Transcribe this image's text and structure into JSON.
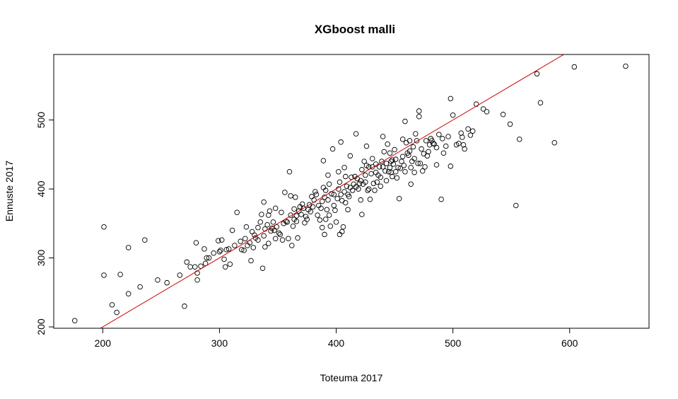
{
  "chart_data": {
    "type": "scatter",
    "title": "XGboost malli",
    "xlabel": "Toteuma 2017",
    "ylabel": "Ennuste 2017",
    "xlim": [
      158,
      668
    ],
    "ylim": [
      198,
      595
    ],
    "xticks": [
      200,
      300,
      400,
      500,
      600
    ],
    "yticks": [
      200,
      300,
      400,
      500
    ],
    "grid": false,
    "colors": {
      "points": "#000000",
      "fit_line": "#cc0000"
    },
    "reference_line": {
      "type": "identity",
      "intercept": 0,
      "slope": 1
    },
    "points": [
      [
        176,
        209
      ],
      [
        201,
        345
      ],
      [
        201,
        275
      ],
      [
        208,
        232
      ],
      [
        212,
        221
      ],
      [
        215,
        276
      ],
      [
        222,
        315
      ],
      [
        222,
        248
      ],
      [
        232,
        258
      ],
      [
        236,
        326
      ],
      [
        247,
        268
      ],
      [
        255,
        264
      ],
      [
        266,
        275
      ],
      [
        270,
        230
      ],
      [
        272,
        294
      ],
      [
        275,
        287
      ],
      [
        279,
        287
      ],
      [
        280,
        322
      ],
      [
        281,
        268
      ],
      [
        281,
        278
      ],
      [
        284,
        288
      ],
      [
        287,
        313
      ],
      [
        288,
        292
      ],
      [
        289,
        300
      ],
      [
        291,
        300
      ],
      [
        295,
        307
      ],
      [
        299,
        325
      ],
      [
        300,
        309
      ],
      [
        301,
        311
      ],
      [
        302,
        326
      ],
      [
        304,
        298
      ],
      [
        305,
        287
      ],
      [
        306,
        312
      ],
      [
        308,
        313
      ],
      [
        309,
        291
      ],
      [
        311,
        340
      ],
      [
        313,
        318
      ],
      [
        315,
        366
      ],
      [
        318,
        324
      ],
      [
        319,
        312
      ],
      [
        321,
        311
      ],
      [
        322,
        328
      ],
      [
        323,
        345
      ],
      [
        324,
        318
      ],
      [
        326,
        322
      ],
      [
        327,
        296
      ],
      [
        328,
        338
      ],
      [
        329,
        315
      ],
      [
        330,
        333
      ],
      [
        331,
        329
      ],
      [
        333,
        344
      ],
      [
        333,
        326
      ],
      [
        335,
        352
      ],
      [
        336,
        363
      ],
      [
        337,
        285
      ],
      [
        338,
        332
      ],
      [
        338,
        381
      ],
      [
        339,
        342
      ],
      [
        339,
        316
      ],
      [
        341,
        348
      ],
      [
        342,
        321
      ],
      [
        342,
        362
      ],
      [
        343,
        368
      ],
      [
        344,
        339
      ],
      [
        345,
        343
      ],
      [
        346,
        352
      ],
      [
        347,
        340
      ],
      [
        348,
        328
      ],
      [
        348,
        372
      ],
      [
        349,
        345
      ],
      [
        351,
        336
      ],
      [
        352,
        334
      ],
      [
        353,
        366
      ],
      [
        354,
        326
      ],
      [
        355,
        350
      ],
      [
        356,
        395
      ],
      [
        357,
        353
      ],
      [
        358,
        352
      ],
      [
        359,
        328
      ],
      [
        360,
        425
      ],
      [
        361,
        390
      ],
      [
        361,
        362
      ],
      [
        362,
        318
      ],
      [
        363,
        346
      ],
      [
        364,
        356
      ],
      [
        364,
        371
      ],
      [
        365,
        388
      ],
      [
        366,
        353
      ],
      [
        366,
        361
      ],
      [
        367,
        329
      ],
      [
        368,
        368
      ],
      [
        369,
        374
      ],
      [
        370,
        363
      ],
      [
        371,
        378
      ],
      [
        372,
        372
      ],
      [
        373,
        351
      ],
      [
        374,
        360
      ],
      [
        375,
        356
      ],
      [
        376,
        370
      ],
      [
        377,
        377
      ],
      [
        378,
        367
      ],
      [
        379,
        389
      ],
      [
        380,
        374
      ],
      [
        381,
        384
      ],
      [
        382,
        396
      ],
      [
        383,
        392
      ],
      [
        384,
        362
      ],
      [
        385,
        376
      ],
      [
        386,
        355
      ],
      [
        387,
        372
      ],
      [
        388,
        382
      ],
      [
        388,
        344
      ],
      [
        389,
        441
      ],
      [
        389,
        402
      ],
      [
        390,
        388
      ],
      [
        390,
        334
      ],
      [
        391,
        398
      ],
      [
        391,
        356
      ],
      [
        392,
        370
      ],
      [
        393,
        384
      ],
      [
        393,
        420
      ],
      [
        394,
        407
      ],
      [
        394,
        362
      ],
      [
        395,
        346
      ],
      [
        396,
        393
      ],
      [
        397,
        458
      ],
      [
        398,
        392
      ],
      [
        398,
        376
      ],
      [
        399,
        369
      ],
      [
        400,
        352
      ],
      [
        401,
        386
      ],
      [
        402,
        400
      ],
      [
        402,
        425
      ],
      [
        403,
        410
      ],
      [
        403,
        334
      ],
      [
        404,
        392
      ],
      [
        404,
        468
      ],
      [
        405,
        383
      ],
      [
        405,
        338
      ],
      [
        406,
        345
      ],
      [
        407,
        431
      ],
      [
        407,
        396
      ],
      [
        408,
        418
      ],
      [
        408,
        380
      ],
      [
        409,
        404
      ],
      [
        410,
        392
      ],
      [
        410,
        370
      ],
      [
        411,
        389
      ],
      [
        412,
        402
      ],
      [
        412,
        448
      ],
      [
        413,
        417
      ],
      [
        414,
        398
      ],
      [
        415,
        407
      ],
      [
        416,
        418
      ],
      [
        417,
        403
      ],
      [
        417,
        480
      ],
      [
        418,
        415
      ],
      [
        419,
        400
      ],
      [
        420,
        408
      ],
      [
        421,
        412
      ],
      [
        421,
        384
      ],
      [
        422,
        428
      ],
      [
        422,
        363
      ],
      [
        423,
        407
      ],
      [
        424,
        440
      ],
      [
        425,
        410
      ],
      [
        425,
        420
      ],
      [
        426,
        434
      ],
      [
        426,
        462
      ],
      [
        427,
        398
      ],
      [
        428,
        400
      ],
      [
        428,
        432
      ],
      [
        429,
        385
      ],
      [
        430,
        422
      ],
      [
        431,
        432
      ],
      [
        431,
        444
      ],
      [
        432,
        408
      ],
      [
        433,
        398
      ],
      [
        434,
        436
      ],
      [
        434,
        424
      ],
      [
        435,
        410
      ],
      [
        436,
        420
      ],
      [
        437,
        432
      ],
      [
        438,
        404
      ],
      [
        438,
        417
      ],
      [
        439,
        440
      ],
      [
        440,
        432
      ],
      [
        440,
        476
      ],
      [
        441,
        454
      ],
      [
        442,
        426
      ],
      [
        443,
        437
      ],
      [
        443,
        412
      ],
      [
        444,
        465
      ],
      [
        445,
        425
      ],
      [
        446,
        431
      ],
      [
        446,
        452
      ],
      [
        447,
        440
      ],
      [
        447,
        424
      ],
      [
        448,
        418
      ],
      [
        448,
        442
      ],
      [
        449,
        436
      ],
      [
        450,
        457
      ],
      [
        451,
        443
      ],
      [
        451,
        425
      ],
      [
        452,
        416
      ],
      [
        453,
        431
      ],
      [
        454,
        386
      ],
      [
        455,
        430
      ],
      [
        456,
        440
      ],
      [
        457,
        447
      ],
      [
        457,
        472
      ],
      [
        458,
        434
      ],
      [
        459,
        425
      ],
      [
        459,
        498
      ],
      [
        460,
        467
      ],
      [
        461,
        452
      ],
      [
        462,
        449
      ],
      [
        463,
        455
      ],
      [
        463,
        470
      ],
      [
        464,
        431
      ],
      [
        464,
        407
      ],
      [
        465,
        440
      ],
      [
        466,
        461
      ],
      [
        467,
        444
      ],
      [
        467,
        424
      ],
      [
        468,
        480
      ],
      [
        469,
        470
      ],
      [
        470,
        437
      ],
      [
        471,
        505
      ],
      [
        471,
        513
      ],
      [
        472,
        437
      ],
      [
        473,
        458
      ],
      [
        474,
        426
      ],
      [
        475,
        451
      ],
      [
        476,
        432
      ],
      [
        477,
        470
      ],
      [
        478,
        448
      ],
      [
        479,
        454
      ],
      [
        480,
        464
      ],
      [
        481,
        473
      ],
      [
        482,
        470
      ],
      [
        483,
        466
      ],
      [
        484,
        465
      ],
      [
        486,
        460
      ],
      [
        486,
        435
      ],
      [
        488,
        479
      ],
      [
        490,
        385
      ],
      [
        491,
        473
      ],
      [
        492,
        452
      ],
      [
        494,
        462
      ],
      [
        496,
        476
      ],
      [
        498,
        531
      ],
      [
        498,
        433
      ],
      [
        500,
        507
      ],
      [
        503,
        464
      ],
      [
        505,
        466
      ],
      [
        507,
        481
      ],
      [
        508,
        475
      ],
      [
        509,
        464
      ],
      [
        510,
        458
      ],
      [
        513,
        487
      ],
      [
        515,
        478
      ],
      [
        517,
        484
      ],
      [
        520,
        523
      ],
      [
        526,
        516
      ],
      [
        529,
        512
      ],
      [
        543,
        508
      ],
      [
        549,
        494
      ],
      [
        554,
        376
      ],
      [
        557,
        472
      ],
      [
        572,
        567
      ],
      [
        575,
        525
      ],
      [
        587,
        467
      ],
      [
        604,
        577
      ],
      [
        648,
        578
      ]
    ]
  }
}
